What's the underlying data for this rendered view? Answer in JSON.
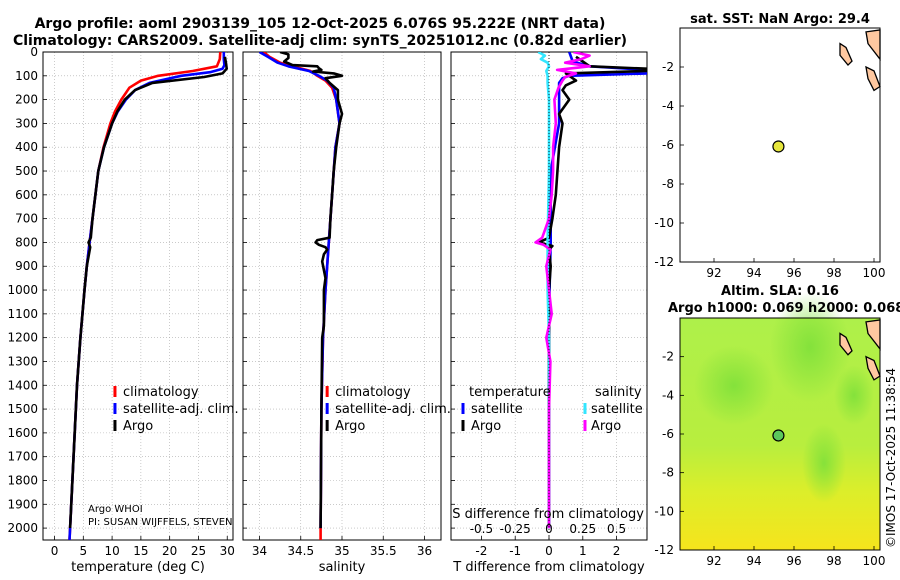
{
  "header": {
    "line1": "Argo profile: aoml 2903139_105 12-Oct-2025 6.076S 95.222E (NRT data)",
    "line2": "Climatology: CARS2009. Satellite-adj clim: synTS_20251012.nc (0.82d earlier)"
  },
  "colors": {
    "climatology": "#ff0000",
    "satellite_adj": "#0000ff",
    "argo": "#000000",
    "t_satellite": "#0000ff",
    "s_satellite": "#33e6ff",
    "s_argo": "#ff00ff"
  },
  "chart_data": [
    {
      "type": "line",
      "name": "temperature",
      "xlabel": "temperature (deg C)",
      "ylabel": "",
      "xlim": [
        -2,
        31
      ],
      "ylim": [
        2050,
        0
      ],
      "xticks": [
        0,
        5,
        10,
        15,
        20,
        25,
        30
      ],
      "yticks": [
        0,
        100,
        200,
        300,
        400,
        500,
        600,
        700,
        800,
        900,
        1000,
        1100,
        1200,
        1300,
        1400,
        1500,
        1600,
        1700,
        1800,
        1900,
        2000
      ],
      "legend": [
        "climatology",
        "satellite-adj. clim.",
        "Argo"
      ],
      "annotations": [
        "Argo WHOI",
        "PI: SUSAN WIJFFELS, STEVEN"
      ],
      "series": [
        {
          "name": "climatology",
          "depth": [
            0,
            30,
            60,
            80,
            100,
            120,
            150,
            200,
            250,
            300,
            400,
            500,
            600,
            700,
            800,
            900,
            1000,
            1200,
            1400,
            1600,
            1800,
            2000,
            2050
          ],
          "values": [
            28.8,
            28.7,
            28.2,
            24,
            18,
            15,
            13,
            11.6,
            10.5,
            9.7,
            8.5,
            7.6,
            7.1,
            6.6,
            6.1,
            5.6,
            5.2,
            4.5,
            3.9,
            3.5,
            3.1,
            2.7,
            2.6
          ]
        },
        {
          "name": "satellite-adj. clim.",
          "depth": [
            0,
            30,
            55,
            70,
            85,
            100,
            130,
            160,
            200,
            250,
            300,
            400,
            500,
            600,
            700,
            800,
            900,
            1000,
            1200,
            1400,
            1600,
            1800,
            2000,
            2050
          ],
          "values": [
            29.4,
            29.4,
            29.5,
            29.2,
            27,
            22,
            16.5,
            14,
            12.4,
            11,
            10,
            8.6,
            7.6,
            7.1,
            6.6,
            6.1,
            5.6,
            5.2,
            4.5,
            3.9,
            3.5,
            3.1,
            2.7,
            2.6
          ]
        },
        {
          "name": "Argo",
          "depth": [
            20,
            50,
            70,
            90,
            105,
            130,
            160,
            200,
            250,
            300,
            400,
            500,
            600,
            700,
            780,
            800,
            820,
            900,
            1000,
            1200,
            1400,
            1600,
            1800,
            2000
          ],
          "values": [
            29.6,
            29.8,
            29.9,
            29.2,
            26,
            17,
            14,
            12.2,
            10.9,
            10,
            8.6,
            7.6,
            7.1,
            6.6,
            6.3,
            5.9,
            6.2,
            5.6,
            5.2,
            4.5,
            3.9,
            3.5,
            3.1,
            2.7
          ]
        }
      ]
    },
    {
      "type": "line",
      "name": "salinity",
      "xlabel": "salinity",
      "xlim": [
        33.8,
        36.2
      ],
      "ylim": [
        2050,
        0
      ],
      "xticks": [
        34,
        34.5,
        35,
        35.5,
        36
      ],
      "legend": [
        "climatology",
        "satellite-adj. clim.",
        "Argo"
      ],
      "series": [
        {
          "name": "climatology",
          "depth": [
            0,
            20,
            45,
            60,
            80,
            100,
            120,
            150,
            200,
            300,
            400,
            600,
            800,
            1000,
            1200,
            1500,
            2000,
            2050
          ],
          "values": [
            34.05,
            34.12,
            34.25,
            34.4,
            34.62,
            34.7,
            34.8,
            34.88,
            34.93,
            34.97,
            34.92,
            34.88,
            34.84,
            34.8,
            34.77,
            34.75,
            34.74,
            34.74
          ]
        },
        {
          "name": "satellite-adj. clim.",
          "depth": [
            0,
            20,
            45,
            60,
            80,
            100,
            120,
            150,
            200,
            300,
            400,
            600,
            800,
            1000,
            1200,
            1500,
            2000
          ],
          "values": [
            34.0,
            34.1,
            34.22,
            34.35,
            34.6,
            34.72,
            34.82,
            34.9,
            34.93,
            34.97,
            34.92,
            34.88,
            34.84,
            34.8,
            34.77,
            34.75,
            34.74
          ]
        },
        {
          "name": "Argo",
          "depth": [
            0,
            10,
            25,
            40,
            55,
            60,
            68,
            75,
            82,
            90,
            100,
            110,
            130,
            160,
            200,
            260,
            300,
            400,
            500,
            600,
            700,
            780,
            790,
            800,
            810,
            820,
            830,
            850,
            880,
            950,
            1000,
            1150,
            1200,
            1500,
            2000
          ],
          "values": [
            34.25,
            34.35,
            34.35,
            34.3,
            34.4,
            34.7,
            34.72,
            34.75,
            34.65,
            34.9,
            35.0,
            34.8,
            34.85,
            34.95,
            34.95,
            35.0,
            34.97,
            34.93,
            34.9,
            34.88,
            34.86,
            34.85,
            34.7,
            34.68,
            34.72,
            34.8,
            34.82,
            34.78,
            34.76,
            34.8,
            34.78,
            34.78,
            34.76,
            34.75,
            34.74
          ]
        }
      ]
    },
    {
      "type": "line",
      "name": "T difference from climatology",
      "xlabel": "T difference from climatology",
      "secondary_xlabel": "S difference from climatology",
      "xlim": [
        -2.9,
        2.9
      ],
      "secondary_xlim": [
        -0.725,
        0.725
      ],
      "ylim": [
        2050,
        0
      ],
      "xticks": [
        -2,
        -1,
        0,
        1,
        2
      ],
      "secondary_xticks": [
        "-0.5",
        "-0.25",
        "0",
        "0.25",
        "0.5"
      ],
      "legend_temperature_title": "temperature",
      "legend_temperature": [
        "satellite",
        "Argo"
      ],
      "legend_salinity_title": "salinity",
      "legend_salinity": [
        "satellite",
        "Argo"
      ],
      "series": [
        {
          "name": "temperature satellite",
          "depth": [
            0,
            40,
            60,
            75,
            90,
            100,
            110,
            130,
            160,
            200,
            300,
            500,
            800,
            1100,
            1500,
            2000
          ],
          "values": [
            0.6,
            0.7,
            1.2,
            2.9,
            2.9,
            0.6,
            0.4,
            0.3,
            0.3,
            0.3,
            0.3,
            0.05,
            0.05,
            0.0,
            0.0,
            0.0
          ]
        },
        {
          "name": "temperature Argo",
          "depth": [
            20,
            40,
            60,
            70,
            80,
            90,
            100,
            120,
            140,
            160,
            200,
            260,
            300,
            400,
            600,
            700,
            780,
            800,
            815,
            830,
            900,
            1000,
            1200,
            1500,
            2000
          ],
          "values": [
            0.8,
            1.0,
            1.2,
            2.9,
            2.9,
            0.5,
            0.6,
            0.8,
            0.5,
            0.4,
            0.6,
            0.3,
            0.4,
            0.3,
            0.2,
            0.1,
            0.0,
            -0.3,
            0.1,
            0.0,
            0.05,
            0.0,
            0.0,
            0.0,
            0.0
          ]
        },
        {
          "name": "salinity satellite",
          "depth": [
            0,
            15,
            30,
            45,
            60,
            80,
            100,
            130,
            200,
            300,
            500,
            800,
            1000,
            1200,
            2000
          ],
          "values": [
            -0.08,
            -0.03,
            -0.06,
            -0.01,
            0.0,
            -0.02,
            -0.01,
            -0.01,
            0.0,
            0.0,
            0.0,
            -0.01,
            -0.01,
            0.0,
            0.0
          ]
        },
        {
          "name": "salinity Argo",
          "depth": [
            0,
            15,
            30,
            45,
            60,
            75,
            90,
            105,
            120,
            150,
            200,
            300,
            400,
            500,
            600,
            700,
            780,
            800,
            810,
            830,
            900,
            1000,
            1100,
            1200,
            1300,
            1500,
            1700,
            2000
          ],
          "values": [
            0.18,
            0.3,
            0.24,
            0.12,
            0.3,
            0.06,
            0.2,
            0.12,
            0.1,
            0.07,
            0.04,
            0.05,
            0.03,
            0.03,
            0.02,
            0.0,
            -0.05,
            -0.1,
            -0.04,
            0.01,
            -0.02,
            0.0,
            0.02,
            -0.02,
            0.01,
            0.0,
            0.0,
            0.0
          ]
        }
      ]
    },
    {
      "type": "scatter",
      "name": "sat SST map",
      "title": "sat. SST: NaN Argo: 29.4",
      "xlim": [
        90.3,
        100.3
      ],
      "ylim": [
        -12,
        0
      ],
      "xticks": [
        92,
        94,
        96,
        98,
        100
      ],
      "yticks": [
        -2,
        -4,
        -6,
        -8,
        -10,
        -12
      ],
      "points": [
        {
          "x": 95.222,
          "y": -6.076,
          "label": "Argo"
        }
      ]
    },
    {
      "type": "heatmap",
      "name": "altimetry SLA map",
      "title": "Altim. SLA: 0.16",
      "subtitle": "Argo h1000: 0.069 h2000: 0.068",
      "xlim": [
        90.3,
        100.3
      ],
      "ylim": [
        -12,
        0
      ],
      "xticks": [
        92,
        94,
        96,
        98,
        100
      ],
      "yticks": [
        -2,
        -4,
        -6,
        -8,
        -10,
        -12
      ],
      "points": [
        {
          "x": 95.222,
          "y": -6.076,
          "label": "Argo"
        }
      ]
    }
  ],
  "watermark": "©IMOS 17-Oct-2025 11:38:54"
}
